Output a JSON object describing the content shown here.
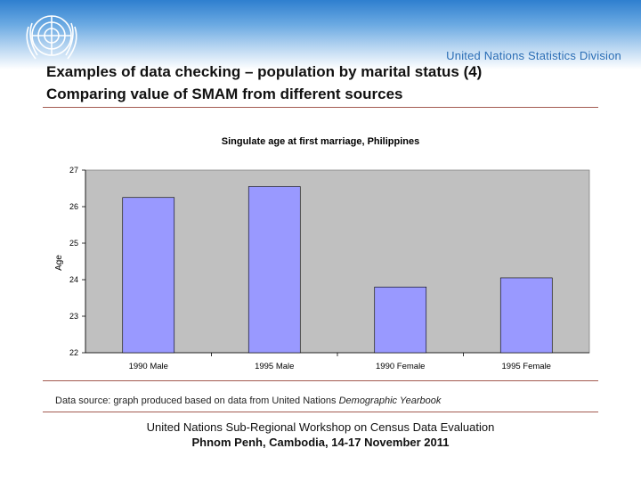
{
  "header": {
    "brand": "United Nations Statistics Division",
    "title_line1": "Examples of data checking – population by marital status (4)",
    "title_line2": "Comparing value of SMAM from different sources"
  },
  "colors": {
    "bar_fill": "#9999ff",
    "plot_bg": "#c0c0c0",
    "rule": "#a35a50",
    "header_blue": "#2f7fcf"
  },
  "chart_data": {
    "type": "bar",
    "title": "Singulate age at first marriage, Philippines",
    "xlabel": "",
    "ylabel": "Age",
    "categories": [
      "1990 Male",
      "1995 Male",
      "1990 Female",
      "1995 Female"
    ],
    "values": [
      26.25,
      26.55,
      23.8,
      24.05
    ],
    "ylim": [
      22,
      27
    ],
    "yticks": [
      22,
      23,
      24,
      25,
      26,
      27
    ],
    "grid": false,
    "legend": "none"
  },
  "source": {
    "prefix": "Data source: graph produced based on data from United Nations ",
    "italic": "Demographic Yearbook"
  },
  "footer": {
    "line1": "United Nations Sub-Regional Workshop on Census Data Evaluation",
    "line2": "Phnom Penh, Cambodia, 14-17 November 2011"
  }
}
